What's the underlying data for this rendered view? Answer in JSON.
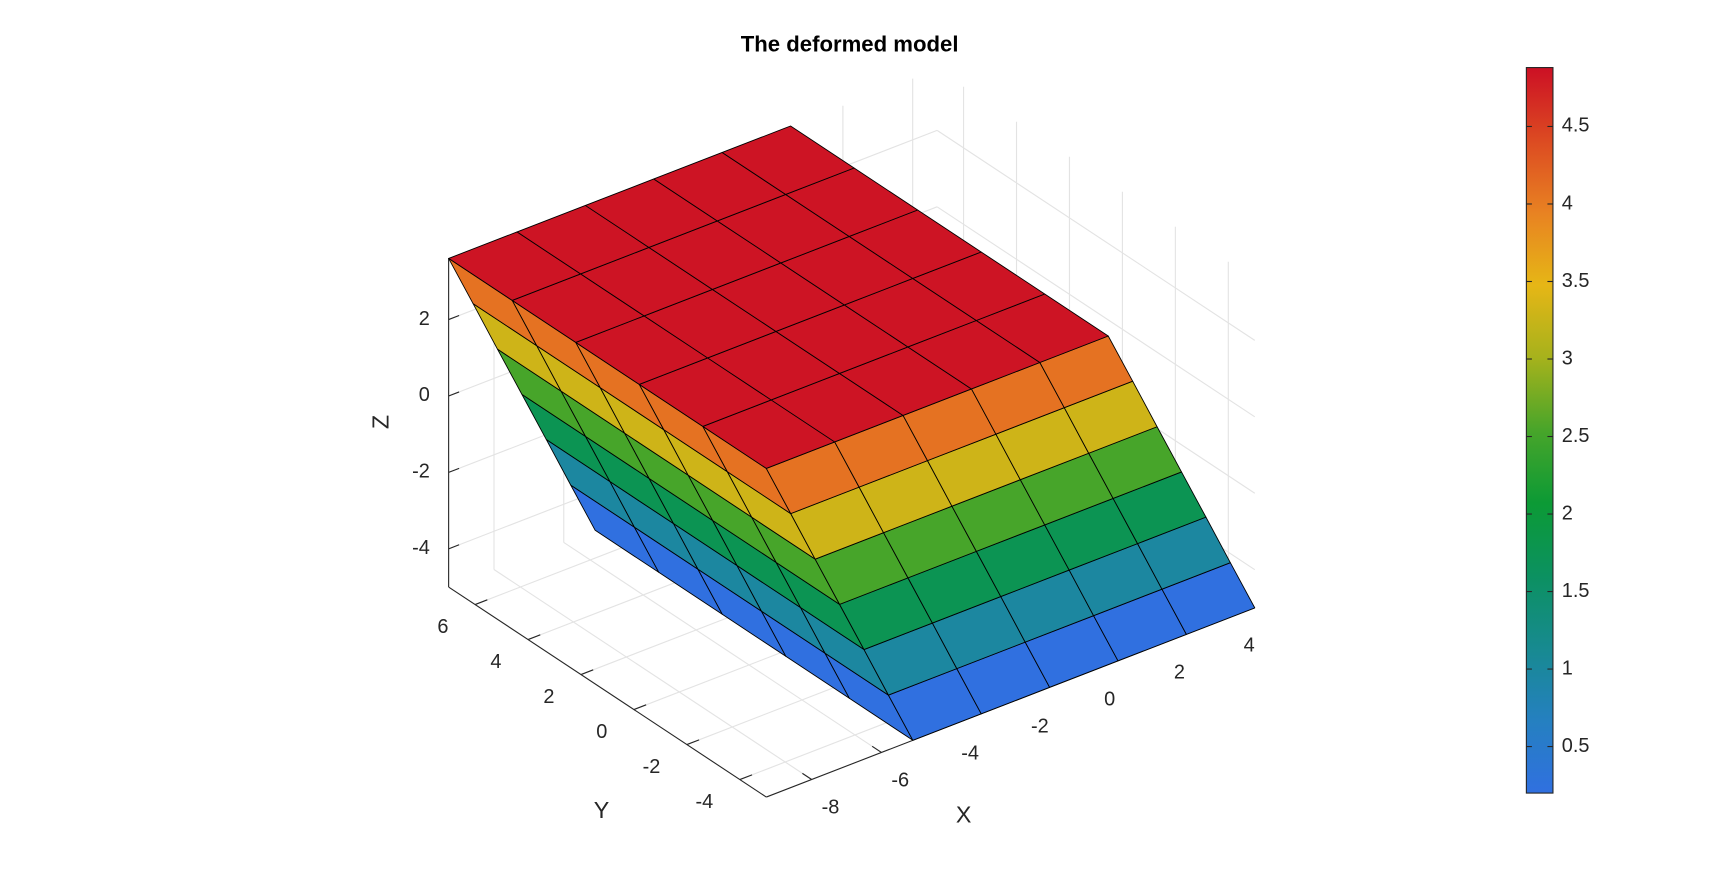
{
  "chart_data": {
    "type": "surface3d",
    "title": "The deformed model",
    "x_label": "X",
    "y_label": "Y",
    "z_label": "Z",
    "x": [
      -9.3,
      -7.34,
      -5.38,
      -3.42,
      -1.46,
      0.5
    ],
    "y": [
      -5,
      -2.6,
      -0.2,
      2.2,
      4.6,
      7
    ],
    "z": [
      -5,
      -3.57,
      -2.13,
      -0.7,
      0.73,
      2.17,
      3.6
    ],
    "x_displacement": [
      4.2,
      3.5,
      2.8,
      2.1,
      1.4,
      0.7,
      0
    ],
    "color_values": [
      0.2,
      0.98,
      1.75,
      2.53,
      3.3,
      4.08,
      4.85
    ],
    "xlim": [
      -9.3,
      4.7
    ],
    "ylim": [
      -5,
      7
    ],
    "zlim": [
      -5,
      3.6
    ],
    "xticks": [
      -8,
      -6,
      -4,
      -2,
      0,
      2,
      4
    ],
    "yticks": [
      -4,
      -2,
      0,
      2,
      4,
      6
    ],
    "zticks": [
      -4,
      -2,
      0,
      2
    ],
    "clim": [
      0.2,
      4.88
    ],
    "cticks": [
      0.5,
      1,
      1.5,
      2,
      2.5,
      3,
      3.5,
      4,
      4.5
    ],
    "colormap": [
      "#3070e0",
      "#2580c0",
      "#178a90",
      "#0c9160",
      "#0c9a35",
      "#48a52a",
      "#a6b21c",
      "#e6b616",
      "#e88222",
      "#dc4a22",
      "#cc1024"
    ],
    "grid": true
  }
}
